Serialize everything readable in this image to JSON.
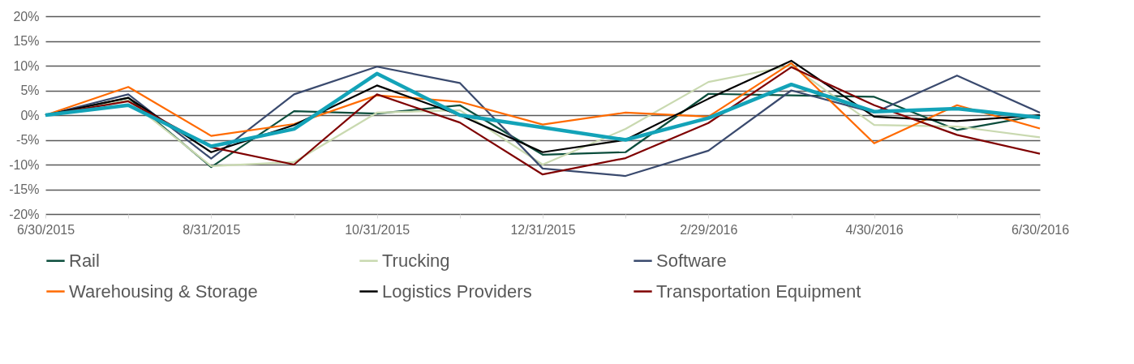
{
  "chart_data": {
    "type": "line",
    "categories": [
      "6/30/2015",
      null,
      "8/31/2015",
      null,
      "10/31/2015",
      null,
      "12/31/2015",
      null,
      "2/29/2016",
      null,
      "4/30/2016",
      null,
      "6/30/2016"
    ],
    "series": [
      {
        "name": "Rail",
        "color": "#0b4d3c",
        "values": [
          0,
          3.5,
          -10.5,
          0.8,
          0.3,
          2,
          -8,
          -7.5,
          4.3,
          4,
          3.7,
          -3,
          0
        ]
      },
      {
        "name": "Trucking",
        "color": "#c9d9b0",
        "values": [
          0,
          3,
          -10.3,
          -9.5,
          0.5,
          1,
          -10,
          -2.8,
          6.7,
          10,
          -2,
          -2.3,
          -4.5
        ]
      },
      {
        "name": "Software",
        "color": "#3a4a6e",
        "values": [
          0,
          4.2,
          -8.8,
          4.2,
          9.8,
          6.5,
          -10.8,
          -12.3,
          -7.2,
          5,
          0.5,
          8,
          0.5
        ]
      },
      {
        "name": "Warehousing & Storage",
        "color": "#ff6a00",
        "values": [
          0,
          5.7,
          -4.2,
          -1.8,
          4,
          2.7,
          -1.9,
          0.5,
          -0.3,
          10.5,
          -5.7,
          2,
          -2.7
        ]
      },
      {
        "name": "Logistics Providers",
        "color": "#000000",
        "values": [
          0,
          3.5,
          -7.5,
          -2,
          6,
          0,
          -7.5,
          -5,
          3.3,
          11,
          -0.3,
          -1.2,
          0
        ]
      },
      {
        "name": "Transportation Equipment",
        "color": "#7f0000",
        "values": [
          0,
          2.8,
          -6.5,
          -10,
          4.2,
          -1.5,
          -12,
          -8.7,
          -1.6,
          9.7,
          2,
          -4,
          -7.8
        ]
      },
      {
        "color": "#13a3b8",
        "values": [
          0,
          2,
          -6.3,
          -2.8,
          8.4,
          0,
          -2.5,
          -5,
          -0.6,
          6.2,
          0.7,
          1.3,
          -0.5
        ]
      }
    ],
    "ylim": [
      -20,
      20
    ],
    "yticks": [
      {
        "value": -20,
        "label": "-20%"
      },
      {
        "value": -15,
        "label": "-15%"
      },
      {
        "value": -10,
        "label": "-10%"
      },
      {
        "value": -5,
        "label": "-5%"
      },
      {
        "value": 0,
        "label": "0%"
      },
      {
        "value": 5,
        "label": "5%"
      },
      {
        "value": 10,
        "label": "10%"
      },
      {
        "value": 15,
        "label": "15%"
      },
      {
        "value": 20,
        "label": "20%"
      }
    ],
    "grid": "y",
    "legend": "bottom",
    "marker": "none",
    "line_style": "solid"
  }
}
